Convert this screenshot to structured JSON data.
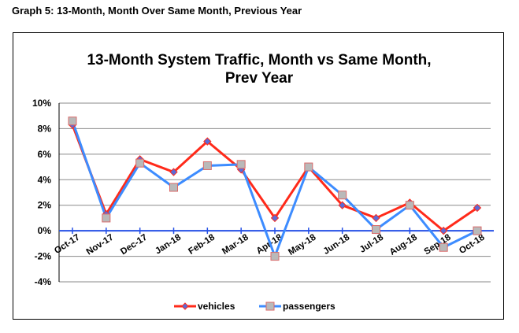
{
  "caption": "Graph 5: 13-Month, Month Over Same Month, Previous Year",
  "chart_data": {
    "type": "line",
    "title_line1": "13-Month System Traffic, Month vs Same Month,",
    "title_line2": "Prev Year",
    "categories": [
      "Oct-17",
      "Nov-17",
      "Dec-17",
      "Jan-18",
      "Feb-18",
      "Mar-18",
      "Apr-18",
      "May-18",
      "Jun-18",
      "Jul-18",
      "Aug-18",
      "Sep-18",
      "Oct-18"
    ],
    "y_ticks": [
      -4,
      -2,
      0,
      2,
      4,
      6,
      8,
      10
    ],
    "y_tick_labels": [
      "-4%",
      "-2%",
      "0%",
      "2%",
      "4%",
      "6%",
      "8%",
      "10%"
    ],
    "ylim": [
      -4,
      10
    ],
    "grid": true,
    "legend_position": "bottom",
    "series": [
      {
        "name": "vehicles",
        "color": "#ff2a1a",
        "marker": "diamond",
        "values": [
          8.3,
          1.3,
          5.6,
          4.6,
          7.0,
          4.8,
          1.0,
          5.0,
          2.0,
          1.0,
          2.2,
          0.0,
          1.8
        ]
      },
      {
        "name": "passengers",
        "color": "#3d8cff",
        "marker": "square",
        "values": [
          8.6,
          1.0,
          5.3,
          3.4,
          5.1,
          5.2,
          -2.0,
          5.0,
          2.8,
          0.1,
          2.0,
          -1.3,
          0.0
        ]
      }
    ]
  }
}
